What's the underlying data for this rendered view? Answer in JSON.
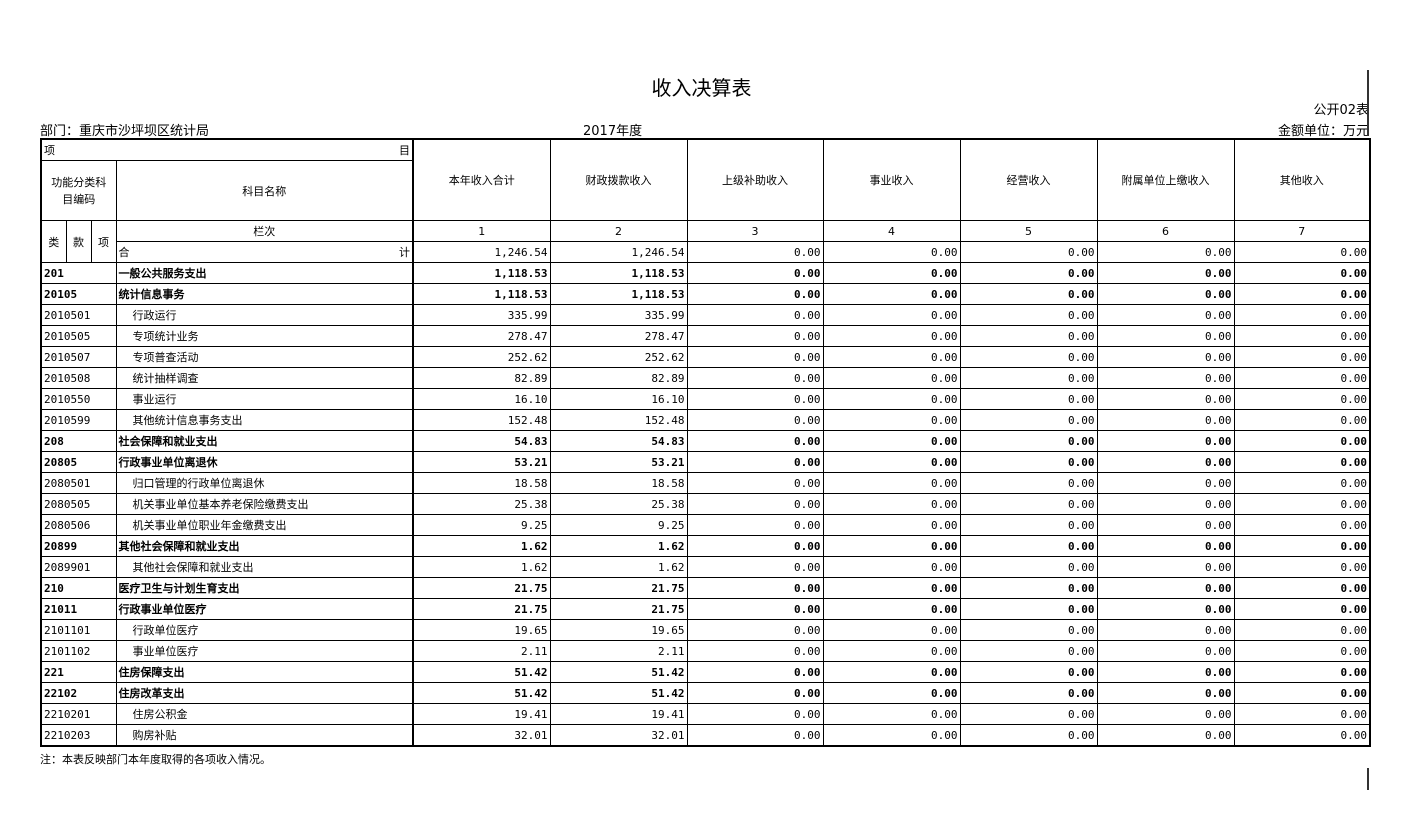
{
  "title": "收入决算表",
  "form_no": "公开02表",
  "department": "部门：重庆市沙坪坝区统计局",
  "year": "2017年度",
  "unit": "金额单位：万元",
  "header": {
    "xiang": "项",
    "mu": "目",
    "code_label": "功能分类科目编码",
    "name_label": "科目名称",
    "lanci": "栏次",
    "lei": "类",
    "kuan": "款",
    "xiang2": "项",
    "he": "合",
    "ji": "计",
    "columns": [
      "本年收入合计",
      "财政拨款收入",
      "上级补助收入",
      "事业收入",
      "经营收入",
      "附属单位上缴收入",
      "其他收入"
    ],
    "col_nums": [
      "1",
      "2",
      "3",
      "4",
      "5",
      "6",
      "7"
    ]
  },
  "total": [
    "1,246.54",
    "1,246.54",
    "0.00",
    "0.00",
    "0.00",
    "0.00",
    "0.00"
  ],
  "rows": [
    {
      "code": "201",
      "name": "一般公共服务支出",
      "bold": true,
      "v": [
        "1,118.53",
        "1,118.53",
        "0.00",
        "0.00",
        "0.00",
        "0.00",
        "0.00"
      ]
    },
    {
      "code": "20105",
      "name": "统计信息事务",
      "bold": true,
      "v": [
        "1,118.53",
        "1,118.53",
        "0.00",
        "0.00",
        "0.00",
        "0.00",
        "0.00"
      ]
    },
    {
      "code": "2010501",
      "name": "行政运行",
      "bold": false,
      "v": [
        "335.99",
        "335.99",
        "0.00",
        "0.00",
        "0.00",
        "0.00",
        "0.00"
      ]
    },
    {
      "code": "2010505",
      "name": "专项统计业务",
      "bold": false,
      "v": [
        "278.47",
        "278.47",
        "0.00",
        "0.00",
        "0.00",
        "0.00",
        "0.00"
      ]
    },
    {
      "code": "2010507",
      "name": "专项普查活动",
      "bold": false,
      "v": [
        "252.62",
        "252.62",
        "0.00",
        "0.00",
        "0.00",
        "0.00",
        "0.00"
      ]
    },
    {
      "code": "2010508",
      "name": "统计抽样调查",
      "bold": false,
      "v": [
        "82.89",
        "82.89",
        "0.00",
        "0.00",
        "0.00",
        "0.00",
        "0.00"
      ]
    },
    {
      "code": "2010550",
      "name": "事业运行",
      "bold": false,
      "v": [
        "16.10",
        "16.10",
        "0.00",
        "0.00",
        "0.00",
        "0.00",
        "0.00"
      ]
    },
    {
      "code": "2010599",
      "name": "其他统计信息事务支出",
      "bold": false,
      "v": [
        "152.48",
        "152.48",
        "0.00",
        "0.00",
        "0.00",
        "0.00",
        "0.00"
      ]
    },
    {
      "code": "208",
      "name": "社会保障和就业支出",
      "bold": true,
      "v": [
        "54.83",
        "54.83",
        "0.00",
        "0.00",
        "0.00",
        "0.00",
        "0.00"
      ]
    },
    {
      "code": "20805",
      "name": "行政事业单位离退休",
      "bold": true,
      "v": [
        "53.21",
        "53.21",
        "0.00",
        "0.00",
        "0.00",
        "0.00",
        "0.00"
      ]
    },
    {
      "code": "2080501",
      "name": "归口管理的行政单位离退休",
      "bold": false,
      "v": [
        "18.58",
        "18.58",
        "0.00",
        "0.00",
        "0.00",
        "0.00",
        "0.00"
      ]
    },
    {
      "code": "2080505",
      "name": "机关事业单位基本养老保险缴费支出",
      "bold": false,
      "v": [
        "25.38",
        "25.38",
        "0.00",
        "0.00",
        "0.00",
        "0.00",
        "0.00"
      ]
    },
    {
      "code": "2080506",
      "name": "机关事业单位职业年金缴费支出",
      "bold": false,
      "v": [
        "9.25",
        "9.25",
        "0.00",
        "0.00",
        "0.00",
        "0.00",
        "0.00"
      ]
    },
    {
      "code": "20899",
      "name": "其他社会保障和就业支出",
      "bold": true,
      "v": [
        "1.62",
        "1.62",
        "0.00",
        "0.00",
        "0.00",
        "0.00",
        "0.00"
      ]
    },
    {
      "code": "2089901",
      "name": "其他社会保障和就业支出",
      "bold": false,
      "v": [
        "1.62",
        "1.62",
        "0.00",
        "0.00",
        "0.00",
        "0.00",
        "0.00"
      ]
    },
    {
      "code": "210",
      "name": "医疗卫生与计划生育支出",
      "bold": true,
      "v": [
        "21.75",
        "21.75",
        "0.00",
        "0.00",
        "0.00",
        "0.00",
        "0.00"
      ]
    },
    {
      "code": "21011",
      "name": "行政事业单位医疗",
      "bold": true,
      "v": [
        "21.75",
        "21.75",
        "0.00",
        "0.00",
        "0.00",
        "0.00",
        "0.00"
      ]
    },
    {
      "code": "2101101",
      "name": "行政单位医疗",
      "bold": false,
      "v": [
        "19.65",
        "19.65",
        "0.00",
        "0.00",
        "0.00",
        "0.00",
        "0.00"
      ]
    },
    {
      "code": "2101102",
      "name": "事业单位医疗",
      "bold": false,
      "v": [
        "2.11",
        "2.11",
        "0.00",
        "0.00",
        "0.00",
        "0.00",
        "0.00"
      ]
    },
    {
      "code": "221",
      "name": "住房保障支出",
      "bold": true,
      "v": [
        "51.42",
        "51.42",
        "0.00",
        "0.00",
        "0.00",
        "0.00",
        "0.00"
      ]
    },
    {
      "code": "22102",
      "name": "住房改革支出",
      "bold": true,
      "v": [
        "51.42",
        "51.42",
        "0.00",
        "0.00",
        "0.00",
        "0.00",
        "0.00"
      ]
    },
    {
      "code": "2210201",
      "name": "住房公积金",
      "bold": false,
      "v": [
        "19.41",
        "19.41",
        "0.00",
        "0.00",
        "0.00",
        "0.00",
        "0.00"
      ]
    },
    {
      "code": "2210203",
      "name": "购房补贴",
      "bold": false,
      "v": [
        "32.01",
        "32.01",
        "0.00",
        "0.00",
        "0.00",
        "0.00",
        "0.00"
      ]
    }
  ],
  "note": "注：本表反映部门本年度取得的各项收入情况。"
}
